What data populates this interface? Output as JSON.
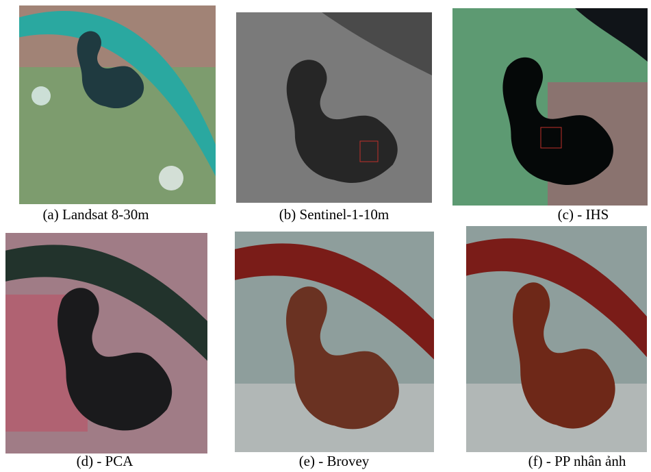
{
  "panels": [
    {
      "caption": "(a) Landsat 8-30m"
    },
    {
      "caption": "(b) Sentinel-1-10m"
    },
    {
      "caption": "(c) - IHS"
    },
    {
      "caption": "(d) - PCA"
    },
    {
      "caption": "(e) - Brovey"
    },
    {
      "caption": "(f) - PP nhân ảnh"
    }
  ]
}
